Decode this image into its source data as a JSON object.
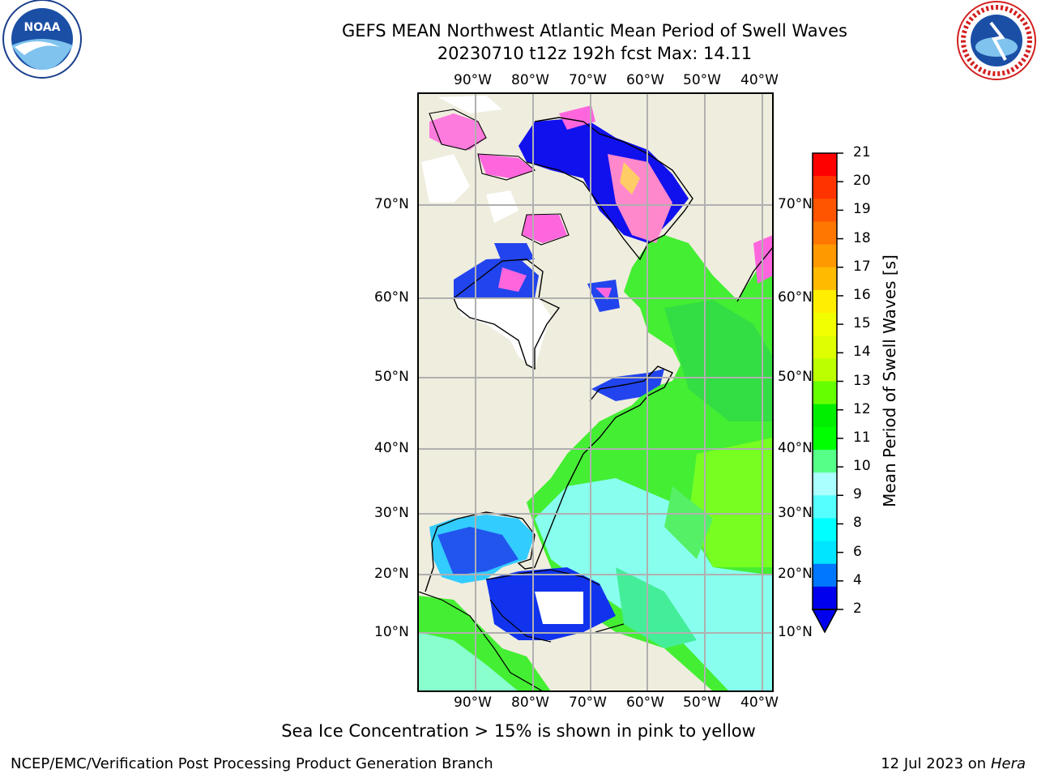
{
  "header": {
    "title_line1": "GEFS MEAN Northwest Atlantic Mean Period of Swell Waves",
    "title_line2": "20230710 t12z 192h fcst   Max: 14.11"
  },
  "map": {
    "lon_labels": [
      "90°W",
      "80°W",
      "70°W",
      "60°W",
      "50°W",
      "40°W"
    ],
    "lat_labels": [
      "70°N",
      "60°N",
      "50°N",
      "40°N",
      "30°N",
      "20°N",
      "10°N"
    ],
    "colors": {
      "land": "#efedde",
      "grid": "#b0b0b0",
      "coast": "#000000"
    }
  },
  "colorbar": {
    "title": "Mean Period of Swell Waves [s]",
    "ticks": [
      "21",
      "20",
      "19",
      "18",
      "17",
      "16",
      "15",
      "14",
      "13",
      "12",
      "11",
      "10",
      "9",
      "8",
      "6",
      "4",
      "2"
    ],
    "colors_top_to_bottom": [
      "#ff0000",
      "#ff3300",
      "#ff5500",
      "#ff7700",
      "#ff9900",
      "#ffbb00",
      "#ffee00",
      "#f2ff00",
      "#ddff00",
      "#bbff00",
      "#66ff00",
      "#00ee00",
      "#00ff00",
      "#55ff88",
      "#aaffff",
      "#55ffff",
      "#00ffff",
      "#00e5ff",
      "#0077ff",
      "#0000ee"
    ]
  },
  "footer": {
    "sea_ice_note": "Sea Ice Concentration > 15% is shown in pink to yellow",
    "credit": "NCEP/EMC/Verification Post Processing Product Generation Branch",
    "date": "12 Jul 2023 on ",
    "host": "Hera"
  },
  "logos": {
    "left": "noaa-logo",
    "right": "national-weather-service-logo"
  }
}
